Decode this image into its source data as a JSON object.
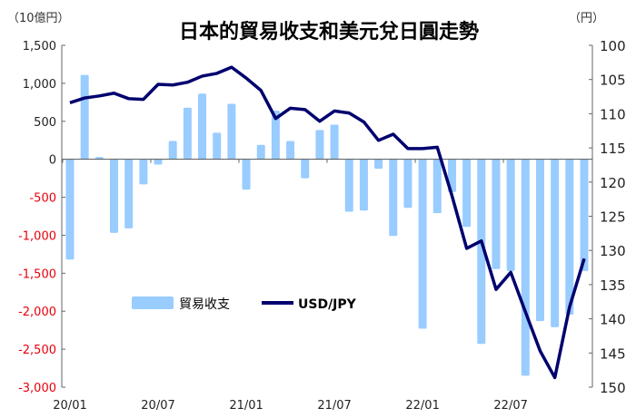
{
  "chart_data": {
    "type": "bar+line",
    "title": "日本的貿易收支和美元兌日圓走勢",
    "left_unit": "（10億円）",
    "right_unit": "（円）",
    "categories": [
      "20/01",
      "20/02",
      "20/03",
      "20/04",
      "20/05",
      "20/06",
      "20/07",
      "20/08",
      "20/09",
      "20/10",
      "20/11",
      "20/12",
      "21/01",
      "21/02",
      "21/03",
      "21/04",
      "21/05",
      "21/06",
      "21/07",
      "21/08",
      "21/09",
      "21/10",
      "21/11",
      "21/12",
      "22/01",
      "22/02",
      "22/03",
      "22/04",
      "22/05",
      "22/06",
      "22/07",
      "22/08",
      "22/09",
      "22/10",
      "22/11",
      "22/12"
    ],
    "x_tick_labels": [
      "20/01",
      "20/07",
      "21/01",
      "21/07",
      "22/01",
      "22/07"
    ],
    "left_axis": {
      "min": -3000,
      "max": 1500,
      "ticks": [
        1500,
        1000,
        500,
        0,
        -500,
        -1000,
        -1500,
        -2000,
        -2500,
        -3000
      ],
      "tick_labels": [
        "1,500",
        "1,000",
        "500",
        "0",
        "-500",
        "-1,000",
        "-1,500",
        "-2,000",
        "-2,500",
        "-3,000"
      ],
      "negative_color": "#e8000b"
    },
    "right_axis": {
      "min": 100,
      "max": 150,
      "inverted": true,
      "ticks": [
        100,
        105,
        110,
        115,
        120,
        125,
        130,
        135,
        140,
        145,
        150
      ]
    },
    "series": [
      {
        "name": "貿易收支",
        "type": "bar",
        "axis": "left",
        "color": "#99ccff",
        "values": [
          -1320,
          1110,
          30,
          -970,
          -910,
          -330,
          -70,
          240,
          680,
          865,
          350,
          730,
          -400,
          190,
          640,
          240,
          -250,
          385,
          455,
          -690,
          -675,
          -125,
          -1010,
          -640,
          -2230,
          -710,
          -430,
          -890,
          -2430,
          -1445,
          -1470,
          -2850,
          -2130,
          -2210,
          -2045,
          -1470
        ]
      },
      {
        "name": "USD/JPY",
        "type": "line",
        "axis": "right",
        "color": "#00006e",
        "values": [
          108.4,
          107.7,
          107.4,
          107.0,
          107.8,
          107.9,
          105.7,
          105.8,
          105.4,
          104.5,
          104.1,
          103.2,
          104.8,
          106.6,
          110.7,
          109.2,
          109.4,
          111.1,
          109.6,
          109.9,
          111.2,
          113.9,
          113.0,
          115.1,
          115.1,
          114.9,
          122.0,
          129.7,
          128.6,
          135.7,
          133.2,
          139.0,
          144.7,
          148.6,
          138.3,
          131.2
        ]
      }
    ],
    "legend": "inside-lower-left",
    "grid": false
  }
}
